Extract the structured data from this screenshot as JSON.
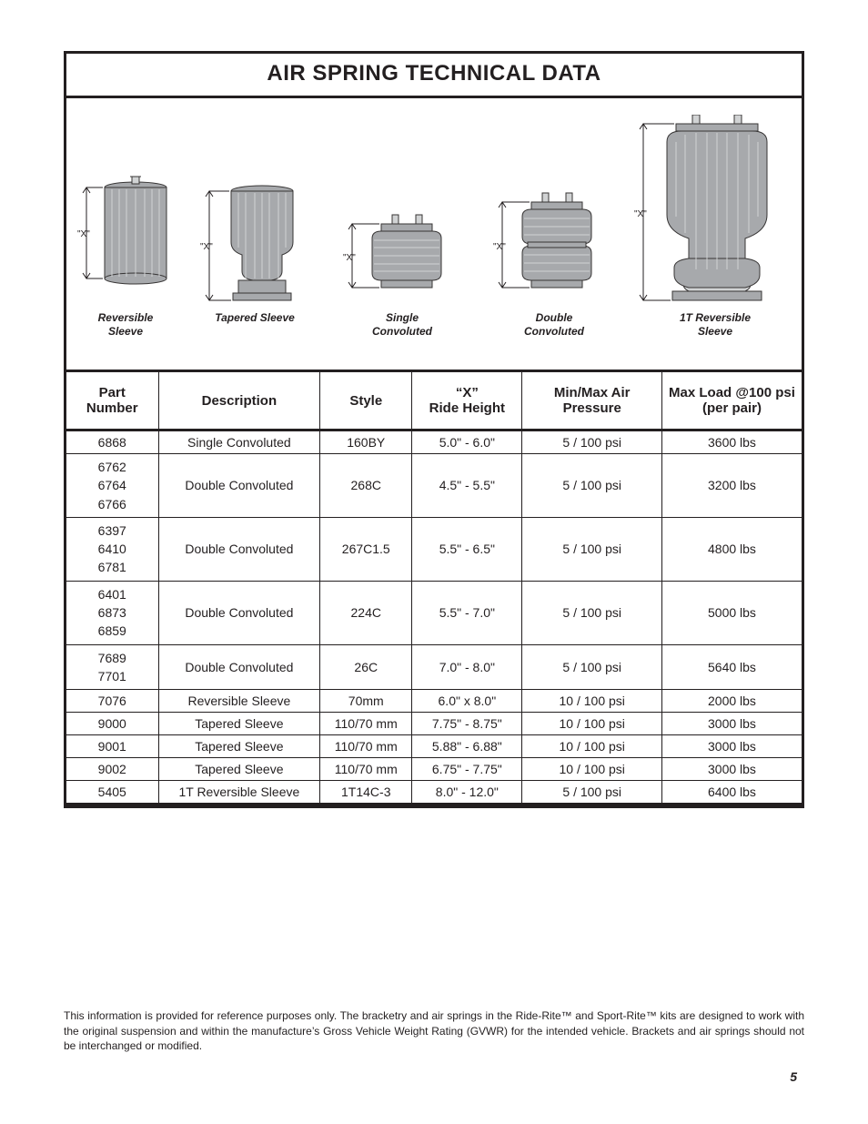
{
  "title": "AIR SPRING TECHNICAL DATA",
  "diagrams": {
    "reversible_sleeve": {
      "label": "Reversible\nSleeve",
      "x_label": "\"X\""
    },
    "tapered_sleeve": {
      "label": "Tapered Sleeve",
      "x_label": "\"X\""
    },
    "single_convoluted": {
      "label": "Single\nConvoluted",
      "x_label": "\"X\""
    },
    "double_convoluted": {
      "label": "Double\nConvoluted",
      "x_label": "\"X\""
    },
    "1t_reversible": {
      "label": "1T Reversible\nSleeve",
      "x_label": "\"X\""
    }
  },
  "table": {
    "columns": {
      "part_number": "Part\nNumber",
      "description": "Description",
      "style": "Style",
      "ride_height": "“X”\nRide Height",
      "pressure": "Min/Max Air\nPressure",
      "load": "Max Load @100 psi\n(per pair)"
    },
    "rows": [
      {
        "parts": [
          "6868"
        ],
        "description": "Single Convoluted",
        "style": "160BY",
        "ride_height": "5.0\" - 6.0\"",
        "pressure": "5 / 100 psi",
        "load": "3600 lbs"
      },
      {
        "parts": [
          "6762",
          "6764",
          "6766"
        ],
        "description": "Double Convoluted",
        "style": "268C",
        "ride_height": "4.5\" - 5.5\"",
        "pressure": "5 / 100 psi",
        "load": "3200 lbs"
      },
      {
        "parts": [
          "6397",
          "6410",
          "6781"
        ],
        "description": "Double Convoluted",
        "style": "267C1.5",
        "ride_height": "5.5\" - 6.5\"",
        "pressure": "5 / 100 psi",
        "load": "4800 lbs"
      },
      {
        "parts": [
          "6401",
          "6873",
          "6859"
        ],
        "description": "Double Convoluted",
        "style": "224C",
        "ride_height": "5.5\" - 7.0\"",
        "pressure": "5 / 100 psi",
        "load": "5000 lbs"
      },
      {
        "parts": [
          "7689",
          "7701"
        ],
        "description": "Double Convoluted",
        "style": "26C",
        "ride_height": "7.0\" - 8.0\"",
        "pressure": "5 / 100 psi",
        "load": "5640 lbs"
      },
      {
        "parts": [
          "7076"
        ],
        "description": "Reversible Sleeve",
        "style": "70mm",
        "ride_height": "6.0\" x 8.0\"",
        "pressure": "10 / 100 psi",
        "load": "2000 lbs"
      },
      {
        "parts": [
          "9000"
        ],
        "description": "Tapered Sleeve",
        "style": "110/70 mm",
        "ride_height": "7.75\" - 8.75\"",
        "pressure": "10 / 100 psi",
        "load": "3000 lbs"
      },
      {
        "parts": [
          "9001"
        ],
        "description": "Tapered Sleeve",
        "style": "110/70 mm",
        "ride_height": "5.88\" - 6.88\"",
        "pressure": "10 / 100 psi",
        "load": "3000 lbs"
      },
      {
        "parts": [
          "9002"
        ],
        "description": "Tapered Sleeve",
        "style": "110/70 mm",
        "ride_height": "6.75\" - 7.75\"",
        "pressure": "10 / 100 psi",
        "load": "3000 lbs"
      },
      {
        "parts": [
          "5405"
        ],
        "description": "1T Reversible Sleeve",
        "style": "1T14C-3",
        "ride_height": "8.0\" - 12.0\"",
        "pressure": "5 / 100 psi",
        "load": "6400 lbs"
      }
    ]
  },
  "disclaimer": "This information is provided for reference purposes only. The bracketry and air springs in the Ride-Rite™ and Sport-Rite™ kits are designed to work with the original suspension and within the manufacture’s Gross Vehicle Weight Rating (GVWR) for the intended vehicle. Brackets and air springs should not be interchanged or modified.",
  "page_number": "5",
  "style": {
    "border_color": "#231f20",
    "text_color": "#231f20",
    "svg_fill": "#a7a9ac",
    "svg_stroke": "#373535",
    "svg_highlight": "#d1d3d4"
  }
}
